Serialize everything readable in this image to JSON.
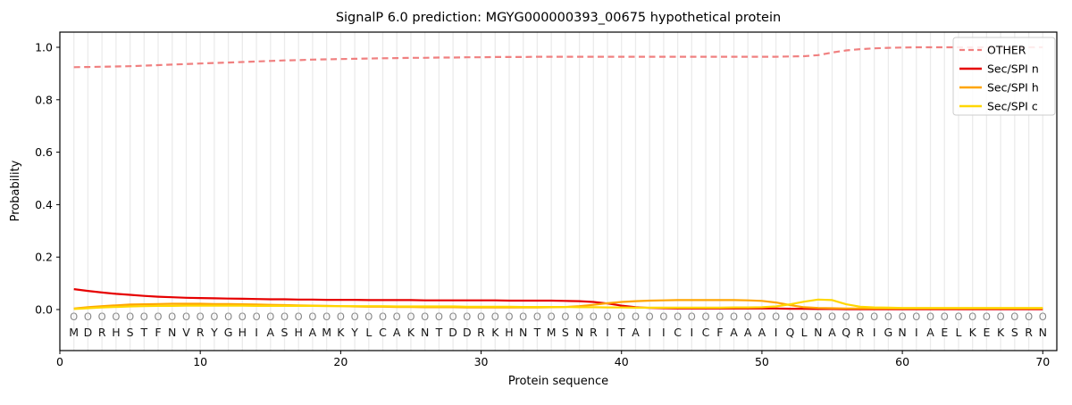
{
  "colors": {
    "other": "#f08080",
    "spi_n": "#e60000",
    "spi_h": "#ffa500",
    "spi_c": "#ffd700",
    "grid": "#ebebeb",
    "spine": "#000000",
    "marker": "#8a8a8a",
    "letter": "#141414",
    "legend_border": "#cccccc"
  },
  "chart_data": {
    "type": "line",
    "title": "SignalP 6.0 prediction: MGYG000000393_00675 hypothetical protein",
    "xlabel": "Protein sequence",
    "ylabel": "Probability",
    "xlim": [
      0,
      71
    ],
    "ylim": [
      -0.156,
      1.058
    ],
    "x_ticks": [
      0,
      10,
      20,
      30,
      40,
      50,
      60,
      70
    ],
    "x_tick_labels": [
      "0",
      "10",
      "20",
      "30",
      "40",
      "50",
      "60",
      "70"
    ],
    "y_ticks": [
      0.0,
      0.2,
      0.4,
      0.6,
      0.8,
      1.0
    ],
    "y_tick_labels": [
      "0.0",
      "0.2",
      "0.4",
      "0.6",
      "0.8",
      "1.0"
    ],
    "grid": "vertical-per-residue",
    "legend_position": "upper-right",
    "x_range": [
      1,
      70
    ],
    "sequence": "MDRHSTFNVRYGHIASHAMKYLCAKNTDDRKHNTMSNRITAIICICFAAAIQLNAQRIGNIAELKEKSRN",
    "marker_row_glyph": "O",
    "series": [
      {
        "name": "OTHER",
        "color": "#f08080",
        "style": "dashed",
        "values": [
          0.924,
          0.925,
          0.926,
          0.927,
          0.928,
          0.93,
          0.932,
          0.934,
          0.936,
          0.938,
          0.94,
          0.942,
          0.944,
          0.946,
          0.948,
          0.95,
          0.951,
          0.953,
          0.954,
          0.955,
          0.956,
          0.957,
          0.958,
          0.959,
          0.96,
          0.96,
          0.961,
          0.961,
          0.962,
          0.962,
          0.963,
          0.963,
          0.963,
          0.964,
          0.964,
          0.964,
          0.964,
          0.964,
          0.964,
          0.964,
          0.964,
          0.964,
          0.964,
          0.964,
          0.964,
          0.964,
          0.964,
          0.964,
          0.964,
          0.964,
          0.964,
          0.965,
          0.966,
          0.97,
          0.98,
          0.988,
          0.993,
          0.996,
          0.998,
          0.999,
          1.0,
          1.0,
          1.0,
          1.0,
          1.0,
          1.0,
          1.0,
          1.0,
          1.0,
          1.0
        ]
      },
      {
        "name": "Sec/SPI n",
        "color": "#e60000",
        "style": "solid",
        "values": [
          0.078,
          0.071,
          0.065,
          0.06,
          0.056,
          0.052,
          0.049,
          0.047,
          0.045,
          0.044,
          0.043,
          0.042,
          0.041,
          0.04,
          0.039,
          0.039,
          0.038,
          0.038,
          0.037,
          0.037,
          0.037,
          0.036,
          0.036,
          0.036,
          0.036,
          0.035,
          0.035,
          0.035,
          0.035,
          0.035,
          0.035,
          0.034,
          0.034,
          0.034,
          0.034,
          0.033,
          0.032,
          0.029,
          0.023,
          0.015,
          0.009,
          0.006,
          0.005,
          0.004,
          0.004,
          0.004,
          0.004,
          0.004,
          0.004,
          0.004,
          0.004,
          0.003,
          0.003,
          0.002,
          0.002,
          0.001,
          0.001,
          0.001,
          0.001,
          0.001,
          0.001,
          0.001,
          0.001,
          0.001,
          0.001,
          0.001,
          0.001,
          0.001,
          0.001,
          0.001
        ]
      },
      {
        "name": "Sec/SPI h",
        "color": "#ffa500",
        "style": "solid",
        "values": [
          0.004,
          0.009,
          0.013,
          0.016,
          0.019,
          0.02,
          0.021,
          0.022,
          0.022,
          0.022,
          0.021,
          0.021,
          0.02,
          0.019,
          0.018,
          0.017,
          0.016,
          0.015,
          0.014,
          0.013,
          0.012,
          0.011,
          0.011,
          0.01,
          0.01,
          0.009,
          0.009,
          0.009,
          0.008,
          0.008,
          0.008,
          0.008,
          0.008,
          0.008,
          0.009,
          0.01,
          0.013,
          0.018,
          0.024,
          0.029,
          0.032,
          0.034,
          0.035,
          0.036,
          0.036,
          0.036,
          0.036,
          0.036,
          0.035,
          0.033,
          0.027,
          0.017,
          0.009,
          0.006,
          0.005,
          0.004,
          0.004,
          0.004,
          0.004,
          0.004,
          0.004,
          0.004,
          0.004,
          0.004,
          0.004,
          0.004,
          0.004,
          0.004,
          0.004,
          0.004
        ]
      },
      {
        "name": "Sec/SPI c",
        "color": "#ffd700",
        "style": "solid",
        "values": [
          0.002,
          0.005,
          0.008,
          0.01,
          0.012,
          0.013,
          0.014,
          0.014,
          0.015,
          0.015,
          0.015,
          0.015,
          0.015,
          0.014,
          0.014,
          0.014,
          0.014,
          0.014,
          0.013,
          0.013,
          0.013,
          0.013,
          0.013,
          0.012,
          0.012,
          0.012,
          0.012,
          0.012,
          0.011,
          0.011,
          0.011,
          0.011,
          0.01,
          0.01,
          0.01,
          0.01,
          0.009,
          0.009,
          0.008,
          0.008,
          0.007,
          0.007,
          0.007,
          0.007,
          0.007,
          0.007,
          0.007,
          0.008,
          0.008,
          0.009,
          0.012,
          0.02,
          0.03,
          0.038,
          0.036,
          0.02,
          0.011,
          0.008,
          0.007,
          0.006,
          0.006,
          0.006,
          0.006,
          0.006,
          0.006,
          0.006,
          0.006,
          0.006,
          0.006,
          0.006
        ]
      }
    ]
  }
}
